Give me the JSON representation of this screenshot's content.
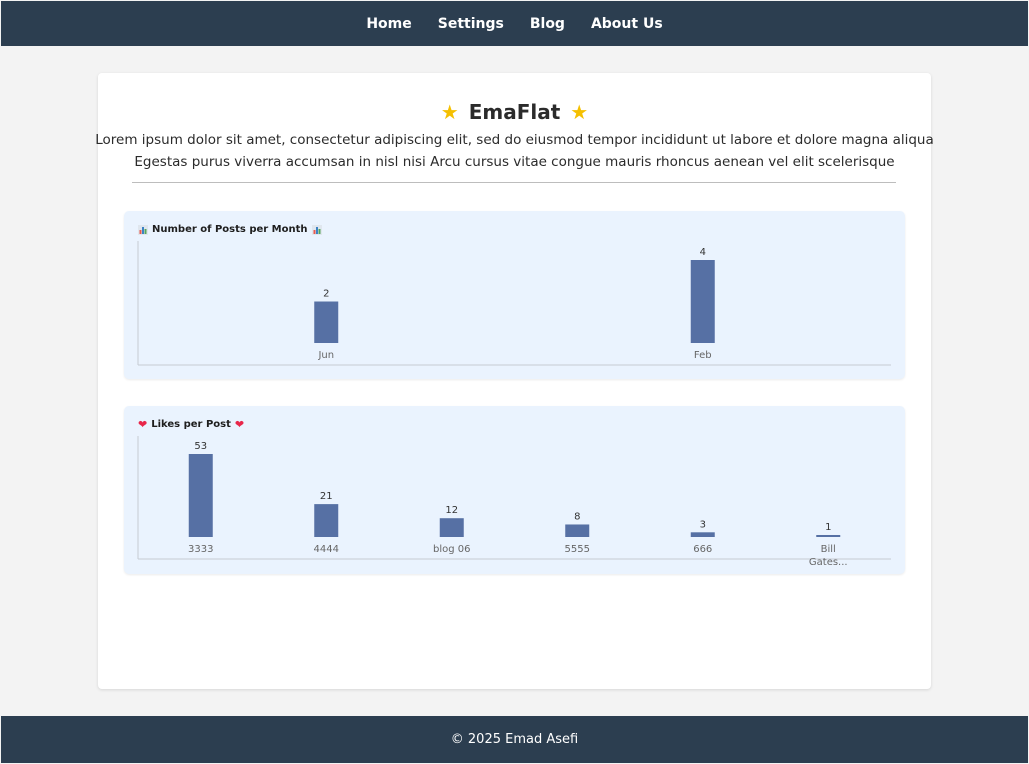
{
  "nav": {
    "items": [
      {
        "label": "Home"
      },
      {
        "label": "Settings"
      },
      {
        "label": "Blog"
      },
      {
        "label": "About Us"
      }
    ]
  },
  "header": {
    "title": "EmaFlat",
    "description_line1": "Lorem ipsum dolor sit amet, consectetur adipiscing elit, sed do eiusmod tempor incididunt ut labore et dolore magna aliqua",
    "description_line2": "Egestas purus viverra accumsan in nisl nisi Arcu cursus vitae congue mauris rhoncus aenean vel elit scelerisque"
  },
  "footer": {
    "text": "© 2025 Emad Asefi"
  },
  "colors": {
    "nav_bg": "#2c3e50",
    "panel_bg": "#eaf3fe",
    "bar": "#5670a4",
    "heart": "#e8264a",
    "star": "#f5c000"
  },
  "chart_data": [
    {
      "type": "bar",
      "title": "Number of Posts per Month",
      "title_icon": "bar-chart-icon",
      "categories": [
        "Jun",
        "Feb"
      ],
      "values": [
        2,
        4
      ],
      "ylim": [
        0,
        4
      ],
      "grid": false
    },
    {
      "type": "bar",
      "title": "Likes per Post",
      "title_icon": "heart-icon",
      "categories": [
        "3333",
        "4444",
        "blog 06",
        "5555",
        "666",
        "Bill Gates..."
      ],
      "category_lines": [
        [
          "3333"
        ],
        [
          "4444"
        ],
        [
          "blog 06"
        ],
        [
          "5555"
        ],
        [
          "666"
        ],
        [
          "Bill",
          "Gates..."
        ]
      ],
      "values": [
        53,
        21,
        12,
        8,
        3,
        1
      ],
      "ylim": [
        0,
        53
      ],
      "grid": false
    }
  ]
}
